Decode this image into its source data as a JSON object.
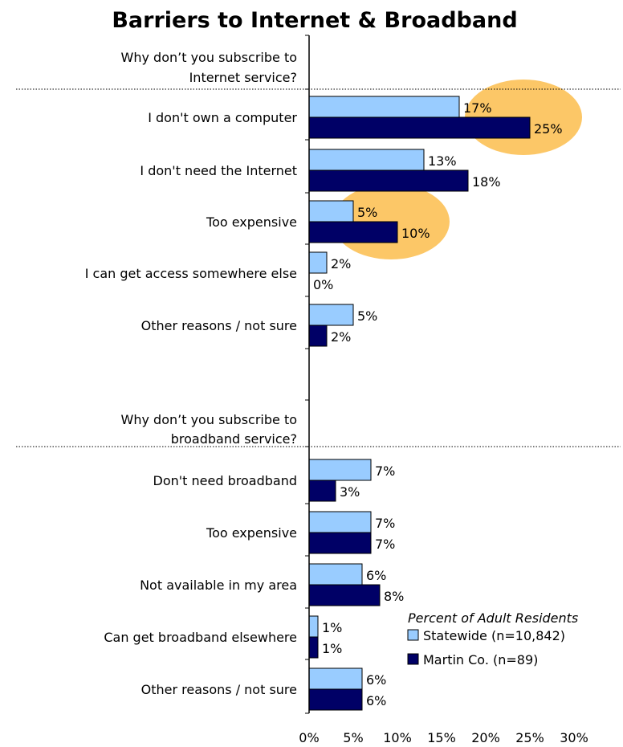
{
  "chart_data": {
    "type": "bar",
    "orientation": "horizontal",
    "title": "Barriers to Internet & Broadband",
    "groups": [
      {
        "question": [
          "Why don’t you subscribe to",
          "Internet service?"
        ],
        "categories": [
          "I don't own a computer",
          "I don't need the Internet",
          "Too expensive",
          "I can get access somewhere else",
          "Other reasons / not sure"
        ],
        "statewide": [
          17,
          13,
          5,
          2,
          5
        ],
        "martin": [
          25,
          18,
          10,
          0,
          2
        ],
        "highlighted": [
          true,
          false,
          true,
          false,
          false
        ]
      },
      {
        "question": [
          "Why don’t you subscribe to",
          "broadband service?"
        ],
        "categories": [
          "Don't need broadband",
          "Too expensive",
          "Not available in my area",
          "Can get broadband elsewhere",
          "Other reasons / not sure"
        ],
        "statewide": [
          7,
          7,
          6,
          1,
          6
        ],
        "martin": [
          3,
          7,
          8,
          1,
          6
        ],
        "highlighted": [
          false,
          false,
          false,
          false,
          false
        ]
      }
    ],
    "series": [
      {
        "name": "Statewide (n=10,842)",
        "color": "#99ccff"
      },
      {
        "name": "Martin Co. (n=89)",
        "color": "#000066"
      }
    ],
    "value_suffix": "%",
    "xlim": [
      0,
      30
    ],
    "xticks": [
      0,
      5,
      10,
      15,
      20,
      25,
      30
    ],
    "xtick_labels": [
      "0%",
      "5%",
      "10%",
      "15%",
      "20%",
      "25%",
      "30%"
    ],
    "legend_title": "Percent of Adult Residents",
    "legend_position": "bottom-right",
    "highlight_color": "#fcc767",
    "grid": false
  }
}
